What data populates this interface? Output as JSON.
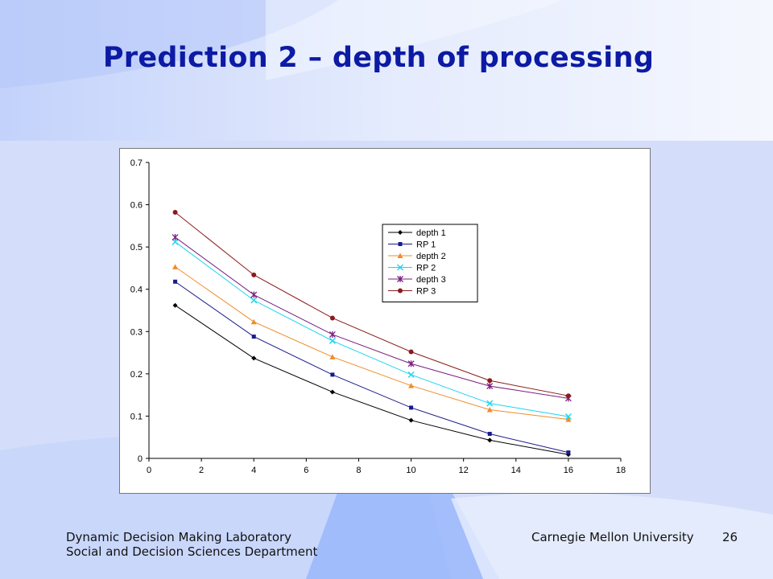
{
  "slide": {
    "title": "Prediction 2 – depth of processing",
    "footer_lab": "Dynamic Decision Making Laboratory",
    "footer_dept": "Social and Decision Sciences Department",
    "footer_university": "Carnegie Mellon University",
    "page_number": "26"
  },
  "colors": {
    "title": "#0c1aa4",
    "background": "#d6e0fb"
  },
  "chart_data": {
    "type": "line",
    "title": "",
    "xlabel": "",
    "ylabel": "",
    "xlim": [
      0,
      18
    ],
    "ylim": [
      0,
      0.7
    ],
    "xticks": [
      0,
      2,
      4,
      6,
      8,
      10,
      12,
      14,
      16,
      18
    ],
    "yticks": [
      0,
      0.1,
      0.2,
      0.3,
      0.4,
      0.5,
      0.6,
      0.7
    ],
    "grid": false,
    "legend_position": "upper-right",
    "x": [
      1,
      4,
      7,
      10,
      13,
      16
    ],
    "series": [
      {
        "name": "depth 1",
        "color": "#000000",
        "marker": "diamond",
        "values": [
          0.362,
          0.237,
          0.157,
          0.09,
          0.043,
          0.009
        ]
      },
      {
        "name": "RP 1",
        "color": "#1a1a8c",
        "marker": "square",
        "values": [
          0.418,
          0.288,
          0.198,
          0.12,
          0.058,
          0.014
        ]
      },
      {
        "name": "depth 2",
        "color": "#f08c28",
        "marker": "triangle",
        "values": [
          0.453,
          0.323,
          0.24,
          0.172,
          0.115,
          0.092
        ]
      },
      {
        "name": "RP 2",
        "color": "#19d6ee",
        "marker": "x",
        "values": [
          0.512,
          0.374,
          0.278,
          0.198,
          0.13,
          0.099
        ]
      },
      {
        "name": "depth 3",
        "color": "#7a1f7e",
        "marker": "asterisk",
        "values": [
          0.523,
          0.387,
          0.293,
          0.224,
          0.171,
          0.142
        ]
      },
      {
        "name": "RP 3",
        "color": "#8b1a1a",
        "marker": "circle",
        "values": [
          0.582,
          0.434,
          0.332,
          0.252,
          0.184,
          0.148
        ]
      }
    ]
  }
}
